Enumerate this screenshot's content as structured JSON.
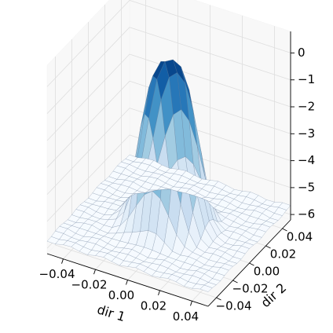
{
  "chart_data": {
    "type": "surface3d",
    "title": "",
    "x_axis": {
      "label": "dir 1",
      "ticks": [
        -0.04,
        -0.02,
        0.0,
        0.02,
        0.04
      ],
      "tick_labels": [
        "−0.04",
        "−0.02",
        "0.00",
        "0.02",
        "0.04"
      ],
      "range": [
        -0.05,
        0.05
      ]
    },
    "y_axis": {
      "label": "dir 2",
      "ticks": [
        -0.04,
        -0.02,
        0.0,
        0.02,
        0.04
      ],
      "tick_labels": [
        "−0.04",
        "−0.02",
        "0.00",
        "0.02",
        "0.04"
      ],
      "range": [
        -0.05,
        0.05
      ]
    },
    "z_axis": {
      "label": "",
      "ticks": [
        0,
        -1,
        -2,
        -3,
        -4,
        -5,
        -6
      ],
      "tick_labels": [
        "0",
        "−1",
        "−2",
        "−3",
        "−4",
        "−5",
        "−6"
      ],
      "range": [
        -6.2,
        0.8
      ]
    },
    "grid": true,
    "colormap": "Blues",
    "surface": {
      "grid_size": 21,
      "x_range": [
        -0.05,
        0.05
      ],
      "y_range": [
        -0.05,
        0.05
      ],
      "z_min": -5.7,
      "z_max": 0.3,
      "peak_center": [
        0.0,
        0.0
      ]
    }
  }
}
